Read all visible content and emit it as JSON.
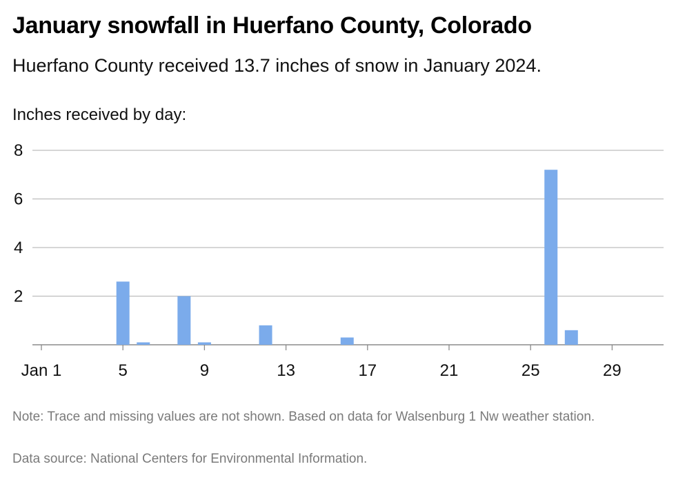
{
  "title": "January snowfall in Huerfano County, Colorado",
  "subtitle": "Huerfano County received 13.7 inches of snow in January 2024.",
  "notes": {
    "note": "Note: Trace and missing values are not shown. Based on data for Walsenburg 1 Nw weather station.",
    "source": "Data source: National Centers for Environmental Information."
  },
  "colors": {
    "bar": "#7BABEB",
    "grid": "#bdbdbd",
    "axis": "#8a8a8a"
  },
  "chart_data": {
    "type": "bar",
    "title": "January snowfall in Huerfano County, Colorado",
    "ylabel": "Inches received by day:",
    "xlabel": "",
    "ylim": [
      0,
      8
    ],
    "yticks": [
      2,
      4,
      6,
      8
    ],
    "xticks": [
      {
        "day": 1,
        "label": "Jan 1"
      },
      {
        "day": 5,
        "label": "5"
      },
      {
        "day": 9,
        "label": "9"
      },
      {
        "day": 13,
        "label": "13"
      },
      {
        "day": 17,
        "label": "17"
      },
      {
        "day": 21,
        "label": "21"
      },
      {
        "day": 25,
        "label": "25"
      },
      {
        "day": 29,
        "label": "29"
      }
    ],
    "grid": true,
    "days": [
      1,
      2,
      3,
      4,
      5,
      6,
      7,
      8,
      9,
      10,
      11,
      12,
      13,
      14,
      15,
      16,
      17,
      18,
      19,
      20,
      21,
      22,
      23,
      24,
      25,
      26,
      27,
      28,
      29,
      30,
      31
    ],
    "values": [
      0,
      0,
      0,
      0,
      2.6,
      0.1,
      0,
      2.0,
      0.1,
      0,
      0,
      0.8,
      0,
      0,
      0,
      0.3,
      0,
      0,
      0,
      0,
      0,
      0,
      0,
      0,
      0,
      7.2,
      0.6,
      0,
      0,
      0,
      0
    ]
  }
}
